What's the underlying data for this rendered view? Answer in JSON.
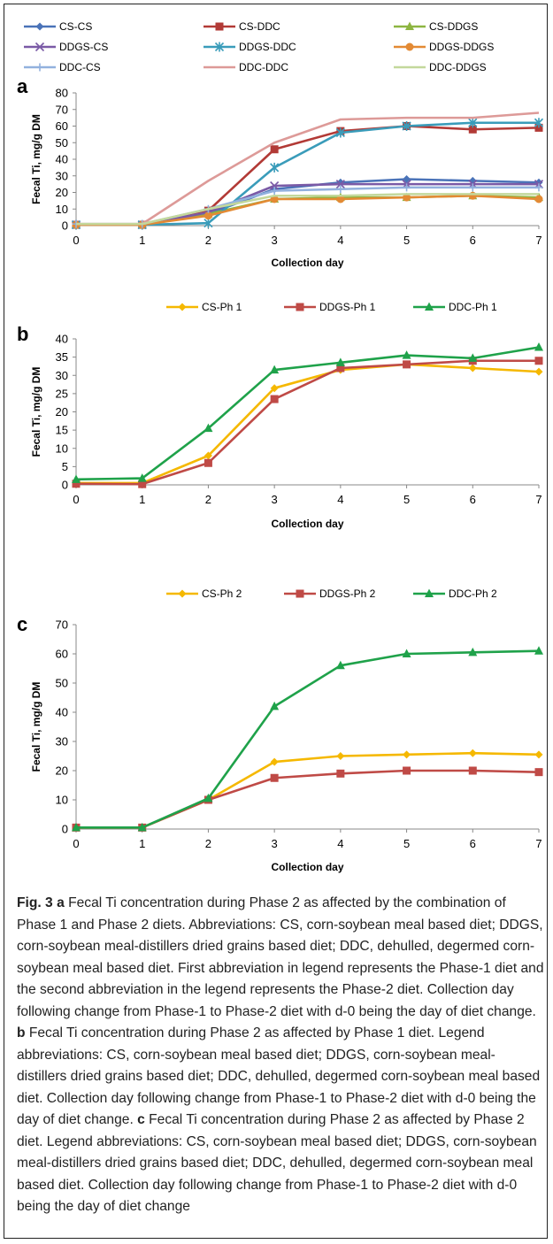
{
  "chart_data": [
    {
      "type": "line",
      "panel": "a",
      "xlabel": "Collection day",
      "ylabel": "Fecal Ti, mg/g DM",
      "x": [
        0,
        1,
        2,
        3,
        4,
        5,
        6,
        7
      ],
      "xlim": [
        0,
        7
      ],
      "ylim": [
        0,
        80
      ],
      "yticks": [
        0,
        10,
        20,
        30,
        40,
        50,
        60,
        70,
        80
      ],
      "grid": false,
      "legend": "top",
      "series": [
        {
          "name": "CS-CS",
          "color": "#4a73b8",
          "marker": "diamond",
          "values": [
            0.5,
            0.5,
            7,
            22,
            26,
            28,
            27,
            26
          ]
        },
        {
          "name": "CS-DDC",
          "color": "#b23a36",
          "marker": "square",
          "values": [
            0.5,
            0.5,
            9,
            46,
            57,
            60,
            58,
            59
          ]
        },
        {
          "name": "CS-DDGS",
          "color": "#8db541",
          "marker": "triangle",
          "values": [
            0.5,
            0.5,
            7,
            16,
            17,
            17,
            18,
            17
          ]
        },
        {
          "name": "DDGS-CS",
          "color": "#7a5aa6",
          "marker": "x",
          "values": [
            0.5,
            0.5,
            8,
            24,
            25,
            25,
            25,
            25
          ]
        },
        {
          "name": "DDGS-DDC",
          "color": "#3a9cba",
          "marker": "star",
          "values": [
            0.5,
            0.5,
            1.5,
            35,
            56,
            60,
            62,
            62
          ]
        },
        {
          "name": "DDGS-DDGS",
          "color": "#e38a34",
          "marker": "circle",
          "values": [
            0.5,
            0.5,
            6,
            16,
            16,
            17,
            18,
            16
          ]
        },
        {
          "name": "DDC-CS",
          "color": "#92b1de",
          "marker": "plus",
          "values": [
            1,
            1,
            10,
            21,
            22,
            23,
            23,
            23
          ]
        },
        {
          "name": "DDC-DDC",
          "color": "#dd9a98",
          "marker": "none",
          "values": [
            1,
            1,
            27,
            50,
            64,
            65,
            65,
            68
          ]
        },
        {
          "name": "DDC-DDGS",
          "color": "#c3d89b",
          "marker": "none",
          "values": [
            1,
            1,
            10,
            18,
            18,
            19,
            19,
            19
          ]
        }
      ]
    },
    {
      "type": "line",
      "panel": "b",
      "xlabel": "Collection day",
      "ylabel": "Fecal Ti, mg/g DM",
      "x": [
        0,
        1,
        2,
        3,
        4,
        5,
        6,
        7
      ],
      "xlim": [
        0,
        7
      ],
      "ylim": [
        0,
        40
      ],
      "yticks": [
        0,
        5,
        10,
        15,
        20,
        25,
        30,
        35,
        40
      ],
      "grid": false,
      "legend": "top",
      "series": [
        {
          "name": "CS-Ph 1",
          "color": "#f5b800",
          "marker": "diamond",
          "values": [
            0.5,
            0.5,
            8,
            26.5,
            31.5,
            33,
            32,
            31
          ]
        },
        {
          "name": "DDGS-Ph 1",
          "color": "#bf4a46",
          "marker": "square",
          "values": [
            0.3,
            0.2,
            6,
            23.5,
            32,
            33,
            34,
            34
          ]
        },
        {
          "name": "DDC-Ph 1",
          "color": "#1fa24a",
          "marker": "triangle",
          "values": [
            1.5,
            1.8,
            15.5,
            31.5,
            33.5,
            35.5,
            34.7,
            37.7
          ]
        }
      ]
    },
    {
      "type": "line",
      "panel": "c",
      "xlabel": "Collection day",
      "ylabel": "Fecal Ti, mg/g DM",
      "x": [
        0,
        1,
        2,
        3,
        4,
        5,
        6,
        7
      ],
      "xlim": [
        0,
        7
      ],
      "ylim": [
        0,
        70
      ],
      "yticks": [
        0,
        10,
        20,
        30,
        40,
        50,
        60,
        70
      ],
      "grid": false,
      "legend": "top",
      "series": [
        {
          "name": "CS-Ph 2",
          "color": "#f5b800",
          "marker": "diamond",
          "values": [
            0.5,
            0.5,
            10,
            23,
            25,
            25.5,
            26,
            25.5
          ]
        },
        {
          "name": "DDGS-Ph 2",
          "color": "#bf4a46",
          "marker": "square",
          "values": [
            0.5,
            0.5,
            10,
            17.5,
            19,
            20,
            20,
            19.5
          ]
        },
        {
          "name": "DDC-Ph 2",
          "color": "#1fa24a",
          "marker": "triangle",
          "values": [
            0.5,
            0.5,
            10.5,
            42,
            56,
            60,
            60.5,
            61
          ]
        }
      ]
    }
  ],
  "caption": {
    "label": "Fig. 3",
    "a_letter": "a",
    "a_text": " Fecal Ti concentration during Phase 2 as affected by the combination of Phase 1 and Phase 2 diets. Abbreviations: CS, corn-soybean meal based diet; DDGS, corn-soybean meal-distillers dried grains based diet; DDC, dehulled, degermed corn-soybean meal based diet. First abbreviation in legend represents the Phase-1 diet and the second abbreviation in the legend represents the Phase-2 diet. Collection day following change from Phase-1 to Phase-2 diet with d-0 being the day of diet change. ",
    "b_letter": "b",
    "b_text": " Fecal Ti concentration during Phase 2 as affected by Phase 1 diet. Legend abbreviations: CS, corn-soybean meal based diet; DDGS, corn-soybean meal-distillers dried grains based diet; DDC, dehulled, degermed corn-soybean meal based diet. Collection day following change from Phase-1 to Phase-2 diet with d-0 being the day of diet change. ",
    "c_letter": "c",
    "c_text": " Fecal Ti concentration during Phase 2 as affected by Phase 2 diet. Legend abbreviations: CS, corn-soybean meal based diet; DDGS, corn-soybean meal-distillers dried grains based diet; DDC, dehulled, degermed corn-soybean meal based diet. Collection day following change from Phase-1 to Phase-2 diet with d-0 being the day of diet change"
  }
}
